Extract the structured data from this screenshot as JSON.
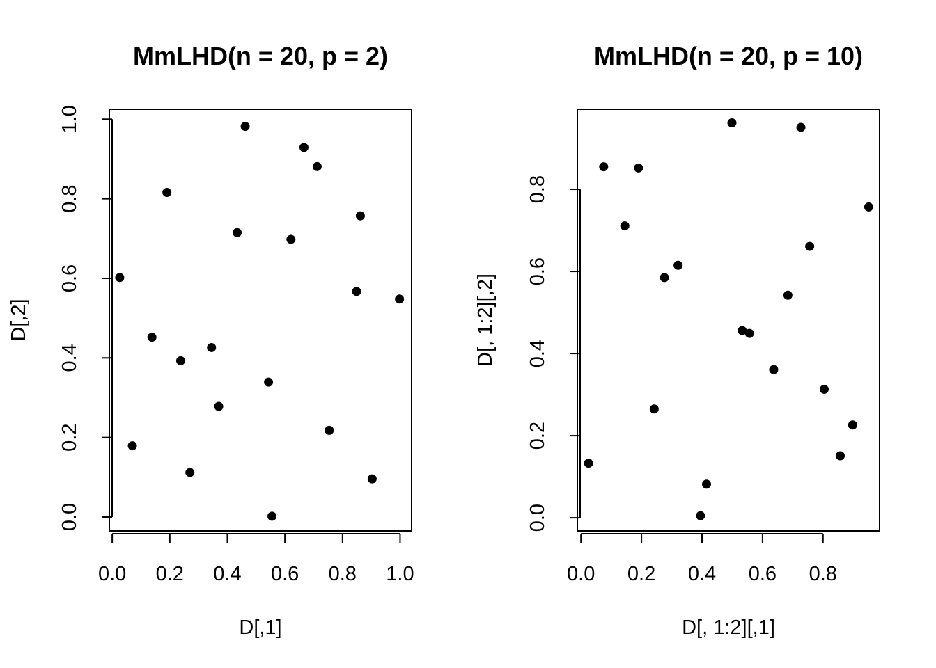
{
  "chart_data": [
    {
      "type": "scatter",
      "title": "MmLHD(n = 20, p = 2)",
      "xlabel": "D[,1]",
      "ylabel": "D[,2]",
      "xlim": [
        -0.01,
        1.04
      ],
      "ylim": [
        -0.035,
        1.025
      ],
      "xticks": [
        0.0,
        0.2,
        0.4,
        0.6,
        0.8,
        1.0
      ],
      "yticks": [
        0.0,
        0.2,
        0.4,
        0.6,
        0.8,
        1.0
      ],
      "xtick_labels": [
        "0.0",
        "0.2",
        "0.4",
        "0.6",
        "0.8",
        "1.0"
      ],
      "ytick_labels": [
        "0.0",
        "0.2",
        "0.4",
        "0.6",
        "0.8",
        "1.0"
      ],
      "points": [
        {
          "x": 0.026,
          "y": 0.602
        },
        {
          "x": 0.07,
          "y": 0.179
        },
        {
          "x": 0.138,
          "y": 0.452
        },
        {
          "x": 0.19,
          "y": 0.816
        },
        {
          "x": 0.238,
          "y": 0.393
        },
        {
          "x": 0.27,
          "y": 0.112
        },
        {
          "x": 0.345,
          "y": 0.426
        },
        {
          "x": 0.37,
          "y": 0.278
        },
        {
          "x": 0.434,
          "y": 0.715
        },
        {
          "x": 0.462,
          "y": 0.982
        },
        {
          "x": 0.543,
          "y": 0.339
        },
        {
          "x": 0.555,
          "y": 0.002
        },
        {
          "x": 0.621,
          "y": 0.698
        },
        {
          "x": 0.666,
          "y": 0.929
        },
        {
          "x": 0.712,
          "y": 0.881
        },
        {
          "x": 0.754,
          "y": 0.218
        },
        {
          "x": 0.849,
          "y": 0.567
        },
        {
          "x": 0.862,
          "y": 0.757
        },
        {
          "x": 0.903,
          "y": 0.096
        },
        {
          "x": 0.998,
          "y": 0.548
        }
      ]
    },
    {
      "type": "scatter",
      "title": "MmLHD(n = 20, p = 10)",
      "xlabel": "D[, 1:2][,1]",
      "ylabel": "D[, 1:2][,2]",
      "xlim": [
        -0.012,
        0.987
      ],
      "ylim": [
        -0.032,
        0.995
      ],
      "xticks": [
        0.0,
        0.2,
        0.4,
        0.6,
        0.8
      ],
      "yticks": [
        0.0,
        0.2,
        0.4,
        0.6,
        0.8
      ],
      "xtick_labels": [
        "0.0",
        "0.2",
        "0.4",
        "0.6",
        "0.8"
      ],
      "ytick_labels": [
        "0.0",
        "0.2",
        "0.4",
        "0.6",
        "0.8"
      ],
      "points": [
        {
          "x": 0.025,
          "y": 0.133
        },
        {
          "x": 0.075,
          "y": 0.855
        },
        {
          "x": 0.145,
          "y": 0.711
        },
        {
          "x": 0.19,
          "y": 0.852
        },
        {
          "x": 0.242,
          "y": 0.265
        },
        {
          "x": 0.276,
          "y": 0.585
        },
        {
          "x": 0.321,
          "y": 0.615
        },
        {
          "x": 0.395,
          "y": 0.005
        },
        {
          "x": 0.415,
          "y": 0.082
        },
        {
          "x": 0.499,
          "y": 0.962
        },
        {
          "x": 0.533,
          "y": 0.456
        },
        {
          "x": 0.557,
          "y": 0.449
        },
        {
          "x": 0.637,
          "y": 0.361
        },
        {
          "x": 0.684,
          "y": 0.542
        },
        {
          "x": 0.727,
          "y": 0.951
        },
        {
          "x": 0.756,
          "y": 0.661
        },
        {
          "x": 0.804,
          "y": 0.313
        },
        {
          "x": 0.857,
          "y": 0.151
        },
        {
          "x": 0.898,
          "y": 0.226
        },
        {
          "x": 0.951,
          "y": 0.757
        }
      ]
    }
  ]
}
